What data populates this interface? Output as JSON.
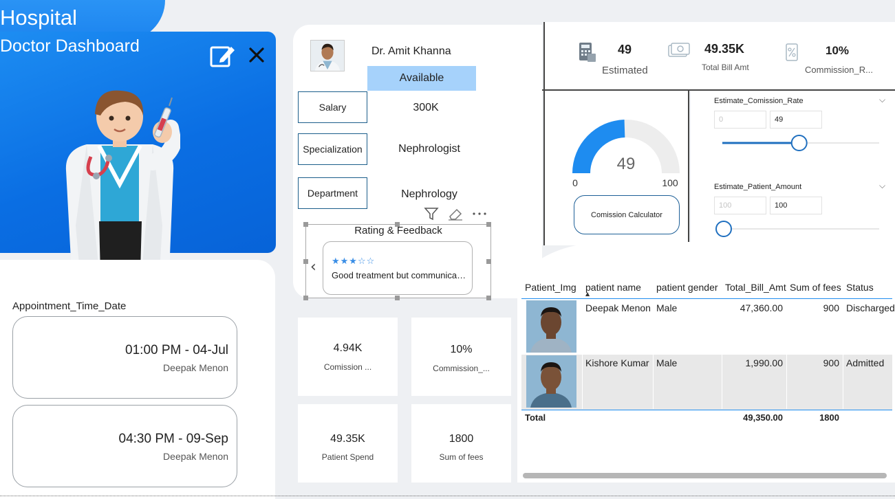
{
  "hero": {
    "title": "Hospital",
    "subtitle": "Doctor Dashboard"
  },
  "appointments": {
    "title": "Appointment_Time_Date",
    "items": [
      {
        "time": "01:00 PM - 04-Jul",
        "patient": "Deepak Menon"
      },
      {
        "time": "04:30 PM - 09-Sep",
        "patient": "Deepak Menon"
      }
    ]
  },
  "profile": {
    "name": "Dr. Amit Khanna",
    "status": "Available",
    "fields": [
      {
        "label": "Salary",
        "value": "300K"
      },
      {
        "label": "Specialization",
        "value": "Nephrologist"
      },
      {
        "label": "Department",
        "value": "Nephrology"
      }
    ]
  },
  "rating": {
    "title": "Rating & Feedback",
    "stars": "★★★☆☆",
    "stars_value": 3,
    "stars_max": 5,
    "feedback": "Good treatment but communication could be better"
  },
  "kpis": [
    {
      "value": "4.94K",
      "label": "Comission ..."
    },
    {
      "value": "10%",
      "label": "Commission_..."
    },
    {
      "value": "49.35K",
      "label": "Patient Spend"
    },
    {
      "value": "1800",
      "label": "Sum of fees"
    }
  ],
  "stats": [
    {
      "icon": "calculator-icon",
      "value": "49",
      "label": "Estimated"
    },
    {
      "icon": "money-icon",
      "value": "49.35K",
      "label": "Total Bill Amt"
    },
    {
      "icon": "percent-icon",
      "value": "10%",
      "label": "Commission_R..."
    }
  ],
  "gauge": {
    "value": "49",
    "min": "0",
    "max": "100",
    "fraction": 0.49,
    "button": "Comission Calculator"
  },
  "sliders": [
    {
      "title": "Estimate_Comission_Rate",
      "min_value": "0",
      "value": "49",
      "position": 0.49
    },
    {
      "title": "Estimate_Patient_Amount",
      "min_value": "100",
      "value": "100",
      "position": 0.0
    }
  ],
  "table": {
    "headers": [
      "Patient_Img",
      "patient name",
      "patient gender",
      "Total_Bill_Amt",
      "Sum of fees",
      "Status"
    ],
    "rows": [
      {
        "name": "Deepak Menon",
        "gender": "Male",
        "bill": "47,360.00",
        "fees": "900",
        "status": "Discharged"
      },
      {
        "name": "Kishore Kumar",
        "gender": "Male",
        "bill": "1,990.00",
        "fees": "900",
        "status": "Admitted"
      }
    ],
    "total": {
      "label": "Total",
      "bill": "49,350.00",
      "fees": "1800"
    }
  },
  "colors": {
    "brand_blue": "#0a6ee3",
    "accent_blue": "#1e8cf0",
    "status_available": "#a6d2fb"
  }
}
